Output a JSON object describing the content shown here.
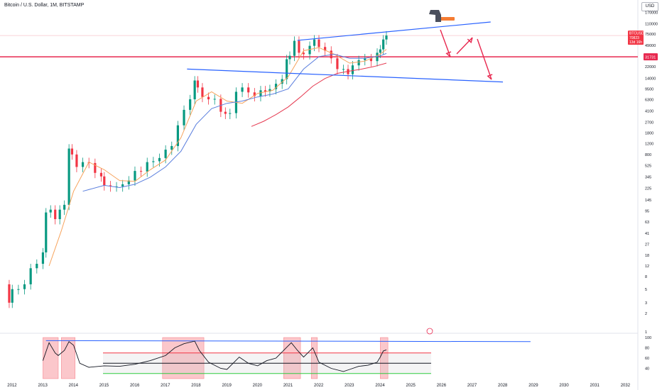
{
  "header": {
    "symbol_title": "Bitcoin / U.S. Dollar, 1M, BITSTAMP",
    "currency_button": "USD"
  },
  "price_labels": {
    "current_symbol": "BTCUSD",
    "current_price": "70823",
    "countdown": "13d 16h",
    "support_level": "31731"
  },
  "colors": {
    "up": "#089981",
    "down": "#f23645",
    "sma_short": "#f7a35c",
    "sma_long": "#5b7fde",
    "sma_200": "#e53950",
    "trendline": "#2962ff",
    "annotation": "#e8284f",
    "rsi_line": "#131722",
    "rsi_high": "#f23645",
    "rsi_low": "#2ecc40",
    "hammer_handle": "#f57c33"
  },
  "icons": [
    "hammer-icon",
    "arrow-down-icon",
    "arrow-up-icon",
    "alert-circle-icon"
  ],
  "chart_data": [
    {
      "type": "line",
      "scale": "log",
      "ylim": [
        1,
        150000
      ],
      "xlim": [
        2011.6,
        2032.4
      ],
      "x_ticks": [
        "2012",
        "2013",
        "2014",
        "2015",
        "2016",
        "2017",
        "2018",
        "2019",
        "2020",
        "2021",
        "2022",
        "2023",
        "2024",
        "2025",
        "2026",
        "2027",
        "2028",
        "2029",
        "2030",
        "2031",
        "2032"
      ],
      "y_ticks": [
        1,
        2,
        3,
        5,
        8,
        12,
        18,
        27,
        41,
        63,
        95,
        145,
        225,
        345,
        525,
        800,
        1200,
        1800,
        2700,
        4100,
        6300,
        9500,
        14000,
        22000,
        33000,
        49000,
        75000,
        110000,
        170000
      ],
      "series": [
        {
          "kind": "close",
          "x": [
            2011.7,
            2011.9,
            2012.0,
            2012.2,
            2012.4,
            2012.6,
            2012.8,
            2013.0,
            2013.1,
            2013.25,
            2013.4,
            2013.55,
            2013.7,
            2013.85,
            2013.95,
            2014.1,
            2014.3,
            2014.5,
            2014.7,
            2014.9,
            2015.0,
            2015.2,
            2015.4,
            2015.6,
            2015.8,
            2016.0,
            2016.2,
            2016.4,
            2016.6,
            2016.8,
            2017.0,
            2017.2,
            2017.4,
            2017.6,
            2017.8,
            2017.95,
            2018.05,
            2018.2,
            2018.4,
            2018.6,
            2018.8,
            2018.95,
            2019.1,
            2019.3,
            2019.5,
            2019.7,
            2019.9,
            2020.1,
            2020.25,
            2020.4,
            2020.6,
            2020.8,
            2020.95,
            2021.05,
            2021.2,
            2021.35,
            2021.5,
            2021.7,
            2021.85,
            2022.0,
            2022.2,
            2022.4,
            2022.6,
            2022.8,
            2022.95,
            2023.1,
            2023.3,
            2023.5,
            2023.7,
            2023.9,
            2024.0,
            2024.1,
            2024.2
          ],
          "values": [
            6,
            3,
            5,
            5,
            6,
            11,
            13,
            20,
            90,
            100,
            70,
            100,
            120,
            1000,
            800,
            500,
            600,
            580,
            400,
            350,
            250,
            240,
            240,
            260,
            300,
            430,
            420,
            600,
            620,
            700,
            960,
            1100,
            2400,
            4300,
            6400,
            13000,
            10000,
            7000,
            6400,
            6500,
            4000,
            3700,
            3800,
            8500,
            10000,
            8300,
            7200,
            9000,
            8600,
            9400,
            11500,
            13700,
            29000,
            33000,
            58000,
            37000,
            35000,
            48000,
            61000,
            46000,
            40000,
            30000,
            20000,
            20000,
            16500,
            23000,
            28000,
            30000,
            27000,
            37000,
            42000,
            61000,
            70800
          ]
        },
        {
          "kind": "sma_short",
          "x": [
            2013.2,
            2013.6,
            2014.0,
            2014.5,
            2015.0,
            2015.5,
            2016.0,
            2016.5,
            2017.0,
            2017.5,
            2018.0,
            2018.5,
            2019.0,
            2019.5,
            2020.0,
            2020.5,
            2021.0,
            2021.5,
            2022.0,
            2022.5,
            2023.0,
            2023.5,
            2024.0,
            2024.2
          ],
          "values": [
            12,
            45,
            200,
            600,
            450,
            300,
            290,
            450,
            650,
            1500,
            6000,
            8500,
            6000,
            5500,
            8000,
            9000,
            15000,
            40000,
            45000,
            35000,
            25000,
            27000,
            35000,
            42000
          ]
        },
        {
          "kind": "sma_long",
          "x": [
            2014.3,
            2015.0,
            2015.5,
            2016.0,
            2016.5,
            2017.0,
            2017.5,
            2018.0,
            2018.5,
            2019.0,
            2019.5,
            2020.0,
            2020.5,
            2021.0,
            2021.5,
            2022.0,
            2022.5,
            2023.0,
            2023.5,
            2024.0,
            2024.2
          ],
          "values": [
            200,
            250,
            230,
            260,
            340,
            500,
            900,
            2500,
            4500,
            5500,
            6000,
            7000,
            7800,
            9500,
            20000,
            32000,
            35000,
            30000,
            30000,
            33000,
            36000
          ]
        },
        {
          "kind": "sma_200",
          "x": [
            2019.8,
            2020.2,
            2020.6,
            2021.0,
            2021.4,
            2021.8,
            2022.2,
            2022.6,
            2023.0,
            2023.4,
            2023.8,
            2024.2
          ],
          "values": [
            2300,
            2800,
            3600,
            4800,
            7000,
            10500,
            14000,
            17000,
            18500,
            20000,
            22000,
            25000
          ]
        }
      ],
      "trendlines": [
        {
          "name": "upper",
          "x": [
            2021.3,
            2027.6
          ],
          "values": [
            59000,
            118000
          ]
        },
        {
          "name": "lower",
          "x": [
            2017.7,
            2028.0
          ],
          "values": [
            20000,
            12300
          ]
        },
        {
          "name": "support",
          "value": 31731
        }
      ]
    },
    {
      "type": "line",
      "name": "RSI",
      "ylim": [
        20,
        100
      ],
      "y_ticks": [
        40,
        60,
        80,
        100
      ],
      "levels": [
        30,
        50,
        70,
        94
      ],
      "x": [
        2013.0,
        2013.2,
        2013.4,
        2013.5,
        2013.7,
        2013.85,
        2014.0,
        2014.2,
        2014.5,
        2015.0,
        2015.5,
        2016.0,
        2016.5,
        2017.0,
        2017.3,
        2017.6,
        2017.95,
        2018.1,
        2018.4,
        2018.8,
        2019.0,
        2019.4,
        2019.7,
        2020.0,
        2020.3,
        2020.6,
        2020.9,
        2021.1,
        2021.3,
        2021.5,
        2021.8,
        2022.0,
        2022.4,
        2022.8,
        2023.0,
        2023.3,
        2023.6,
        2023.9,
        2024.0,
        2024.1,
        2024.2
      ],
      "values": [
        55,
        90,
        70,
        65,
        75,
        92,
        85,
        50,
        42,
        45,
        44,
        48,
        55,
        65,
        80,
        88,
        93,
        75,
        52,
        40,
        38,
        62,
        50,
        45,
        55,
        60,
        78,
        90,
        75,
        62,
        80,
        52,
        40,
        34,
        38,
        44,
        46,
        52,
        62,
        74,
        76
      ],
      "shaded_periods": [
        [
          2013.0,
          2013.5
        ],
        [
          2013.6,
          2014.05
        ],
        [
          2016.9,
          2018.25
        ],
        [
          2020.85,
          2021.4
        ],
        [
          2021.75,
          2021.95
        ],
        [
          2024.0,
          2024.25
        ]
      ]
    }
  ]
}
